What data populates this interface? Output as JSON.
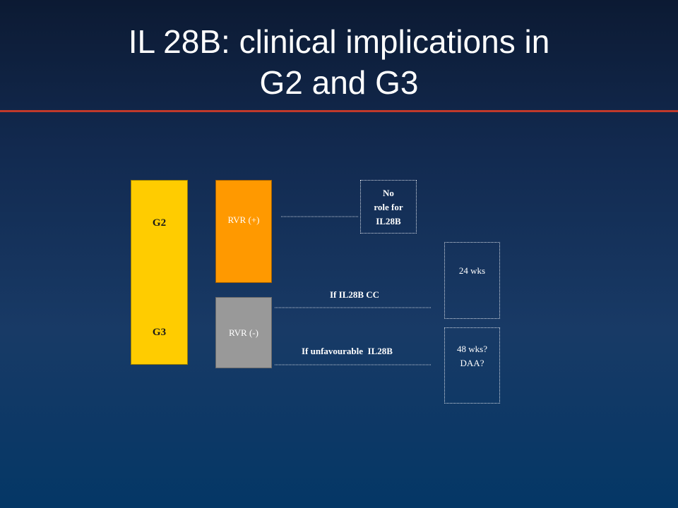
{
  "title": {
    "line1": "IL 28B: clinical implications in",
    "line2": "G2 and G3"
  },
  "genotype_box": {
    "top_label": "G2",
    "bottom_label": "G3"
  },
  "rvr_positive": {
    "label": "RVR (+)"
  },
  "rvr_negative": {
    "label": "RVR (-)"
  },
  "outcome_no_role": {
    "line1": "No",
    "line2": "role for",
    "line3": "IL28B"
  },
  "condition_cc": "If IL28B CC",
  "condition_unfavourable": "If unfavourable  IL28B",
  "outcome_24": {
    "label": "24 wks"
  },
  "outcome_48": {
    "line1": "48 wks?",
    "line2": "DAA?"
  },
  "colors": {
    "genotype": "#ffcc00",
    "rvr_positive": "#ff9900",
    "rvr_negative": "#999999",
    "title_rule": "#c0392b",
    "connector": "#c8cfdb"
  }
}
